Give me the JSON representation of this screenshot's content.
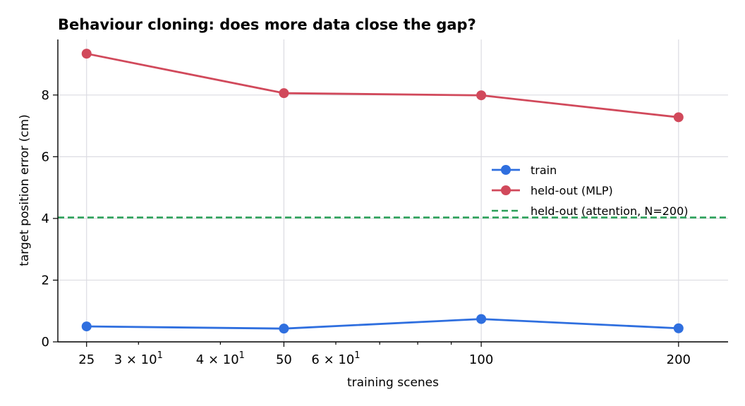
{
  "chart_data": {
    "type": "line",
    "title": "Behaviour cloning: does more data close the gap?",
    "xlabel": "training scenes",
    "ylabel": "target position error (cm)",
    "x_scale": "log",
    "x": [
      25,
      50,
      100,
      200
    ],
    "xlim": [
      22.6,
      238
    ],
    "ylim": [
      0,
      9.8
    ],
    "x_ticks": [
      {
        "value": 25,
        "label": "25"
      },
      {
        "value": 50,
        "label": "50"
      },
      {
        "value": 100,
        "label": "100"
      },
      {
        "value": 200,
        "label": "200"
      }
    ],
    "x_minor_tick_labels": [
      {
        "value": 30,
        "base": "3 × 10",
        "exp": "1"
      },
      {
        "value": 40,
        "base": "4 × 10",
        "exp": "1"
      },
      {
        "value": 60,
        "base": "6 × 10",
        "exp": "1"
      }
    ],
    "x_minor_ticks": [
      30,
      40,
      60,
      70,
      80,
      90
    ],
    "y_ticks": [
      0,
      2,
      4,
      6,
      8
    ],
    "grid": true,
    "legend_position": "center-right",
    "series": [
      {
        "name": "train",
        "values": [
          0.5,
          0.43,
          0.74,
          0.44
        ],
        "color": "#2f6fdf",
        "style": "solid",
        "marker": "circle"
      },
      {
        "name": "held-out (MLP)",
        "values": [
          9.34,
          8.06,
          7.99,
          7.28
        ],
        "color": "#d1495b",
        "style": "solid",
        "marker": "circle"
      }
    ],
    "reference_lines": [
      {
        "name": "held-out (attention, N=200)",
        "y": 4.03,
        "color": "#2ca05a",
        "style": "dashed"
      }
    ]
  }
}
